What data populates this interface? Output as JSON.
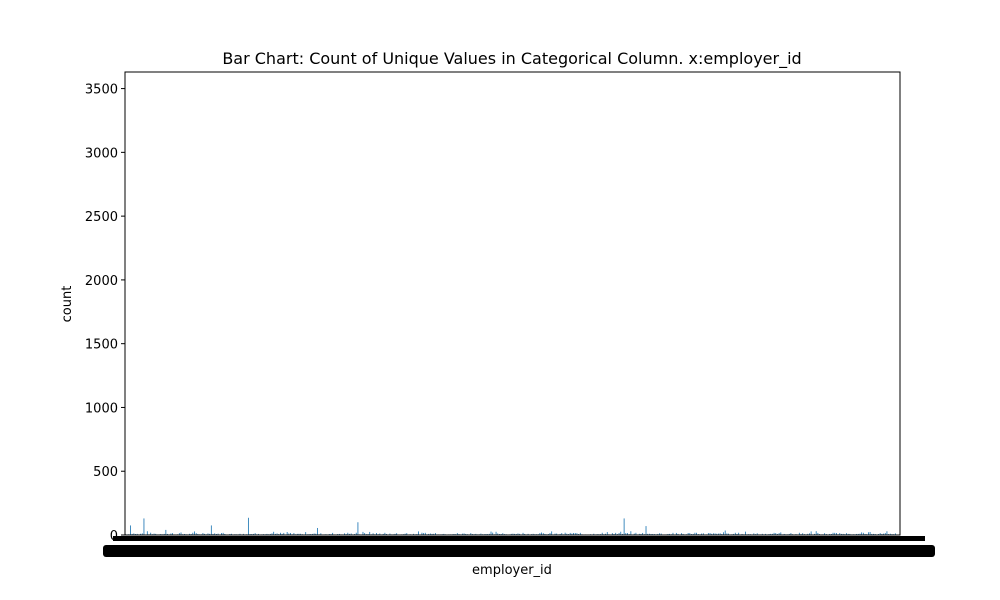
{
  "chart_data": {
    "type": "bar",
    "title": "Bar Chart: Count of Unique Values in Categorical Column. x:employer_id",
    "xlabel": "employer_id",
    "ylabel": "count",
    "ylim": [
      0,
      3630
    ],
    "yticks": [
      0,
      500,
      1000,
      1500,
      2000,
      2500,
      3000,
      3500
    ],
    "ytick_labels": [
      "0",
      "500",
      "1000",
      "1500",
      "2000",
      "2500",
      "3000",
      "3500"
    ],
    "grid": false,
    "legend": "none",
    "bar_color": "#1f77b4",
    "category_count_note": "categories too dense to read individually",
    "notable_bars": [
      {
        "value": 135
      },
      {
        "value": 130
      },
      {
        "value": 130
      },
      {
        "value": 100
      },
      {
        "value": 75
      },
      {
        "value": 75
      },
      {
        "value": 70
      },
      {
        "value": 55
      },
      {
        "value": 40
      },
      {
        "value": 35
      },
      {
        "value": 30
      },
      {
        "value": 30
      }
    ]
  }
}
